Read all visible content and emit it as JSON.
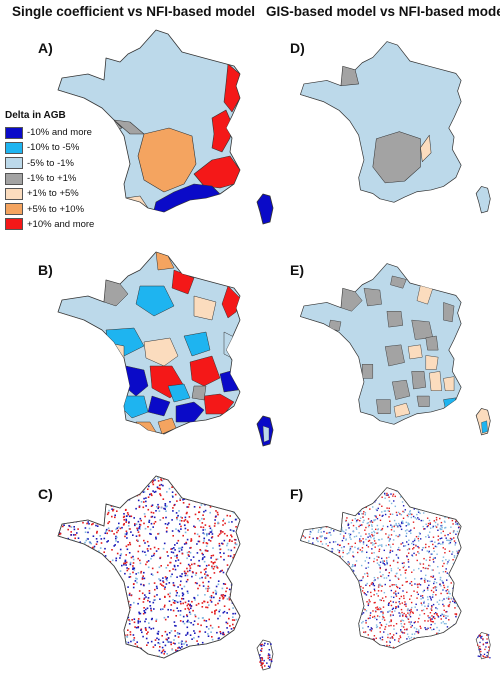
{
  "columns": [
    {
      "title": "Single coefficient vs NFI-based model"
    },
    {
      "title": "GIS-based model vs NFI-based model"
    }
  ],
  "panels": [
    {
      "label": "A)"
    },
    {
      "label": "D)"
    },
    {
      "label": "B)"
    },
    {
      "label": "E)"
    },
    {
      "label": "C)"
    },
    {
      "label": "F)"
    }
  ],
  "legend": {
    "title": "Delta in AGB",
    "items": [
      {
        "label": "-10% and more",
        "color": "#0a0ac8"
      },
      {
        "label": "-10% to -5%",
        "color": "#1eb4f0"
      },
      {
        "label": "-5% to -1%",
        "color": "#bcd9ea"
      },
      {
        "label": "-1% to +1%",
        "color": "#a3a3a3"
      },
      {
        "label": "+1% to +5%",
        "color": "#fbdcbe"
      },
      {
        "label": "+5% to +10%",
        "color": "#f4a460"
      },
      {
        "label": "+10% and more",
        "color": "#f41818"
      }
    ]
  }
}
